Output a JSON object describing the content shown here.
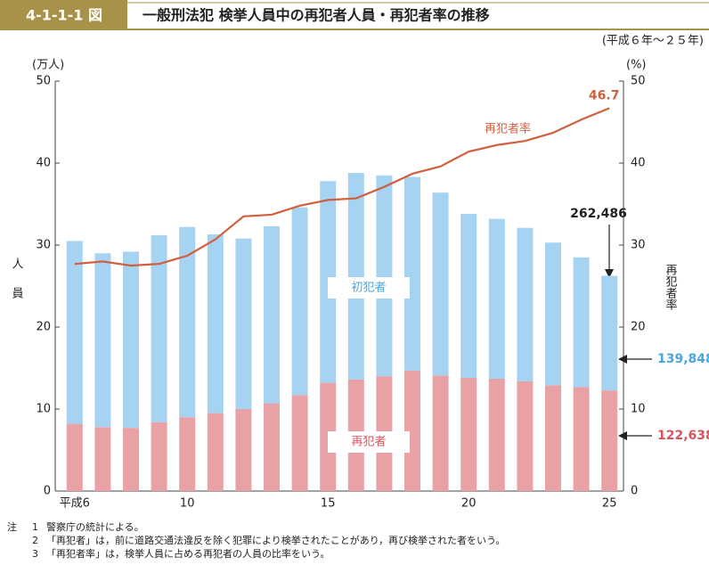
{
  "chart_data": {
    "type": "bar",
    "figure_id": "4-1-1-1 図",
    "title": "一般刑法犯 検挙人員中の再犯者人員・再犯者率の推移",
    "subtitle": "(平成６年～２５年)",
    "y_unit": "(万人)",
    "y2_unit": "(%)",
    "y_title": "人員",
    "y2_title": "再犯者率",
    "categories": [
      "平成6",
      null,
      null,
      null,
      "10",
      null,
      null,
      null,
      null,
      "15",
      null,
      null,
      null,
      null,
      "20",
      null,
      null,
      null,
      null,
      "25"
    ],
    "ylim": [
      0,
      50
    ],
    "yticks": [
      0,
      10,
      20,
      30,
      40,
      50
    ],
    "y2lim": [
      0,
      50
    ],
    "y2ticks": [
      0,
      10,
      20,
      30,
      40,
      50
    ],
    "series": [
      {
        "name": "再犯者",
        "color": "#e8a2a5",
        "label_color": "#d9545e",
        "values": [
          8.2,
          7.8,
          7.7,
          8.4,
          9.0,
          9.5,
          10.0,
          10.7,
          11.7,
          13.2,
          13.6,
          14.0,
          14.7,
          14.1,
          13.8,
          13.7,
          13.4,
          12.9,
          12.7,
          12.2638
        ],
        "value_labels": [
          null,
          null,
          null,
          null,
          null,
          null,
          null,
          null,
          null,
          null,
          null,
          null,
          null,
          null,
          null,
          null,
          null,
          null,
          null,
          "122,638"
        ]
      },
      {
        "name": "初犯者",
        "color": "#a6d3f2",
        "label_color": "#4aa6dd",
        "values": [
          22.3,
          21.2,
          21.5,
          22.8,
          23.2,
          21.8,
          20.8,
          21.6,
          22.9,
          24.6,
          25.2,
          24.5,
          23.6,
          22.3,
          20.0,
          19.5,
          18.7,
          17.4,
          15.8,
          13.9848
        ],
        "value_labels": [
          null,
          null,
          null,
          null,
          null,
          null,
          null,
          null,
          null,
          null,
          null,
          null,
          null,
          null,
          null,
          null,
          null,
          null,
          null,
          "139,848"
        ]
      },
      {
        "name": "再犯者率",
        "type": "line",
        "axis": "y2",
        "color": "#d0603f",
        "values": [
          27.7,
          28.0,
          27.5,
          27.7,
          28.7,
          30.7,
          33.5,
          33.7,
          34.8,
          35.5,
          35.7,
          37.1,
          38.7,
          39.6,
          41.4,
          42.2,
          42.7,
          43.7,
          45.3,
          46.7
        ]
      }
    ],
    "total_label": "262,486",
    "notes": {
      "marker": "注",
      "items": [
        {
          "num": "1",
          "text": "警察庁の統計による。"
        },
        {
          "num": "2",
          "text": "「再犯者」は，前に道路交通法違反を除く犯罪により検挙されたことがあり，再び検挙された者をいう。"
        },
        {
          "num": "3",
          "text": "「再犯者率」は，検挙人員に占める再犯者の人員の比率をいう。"
        }
      ]
    }
  }
}
